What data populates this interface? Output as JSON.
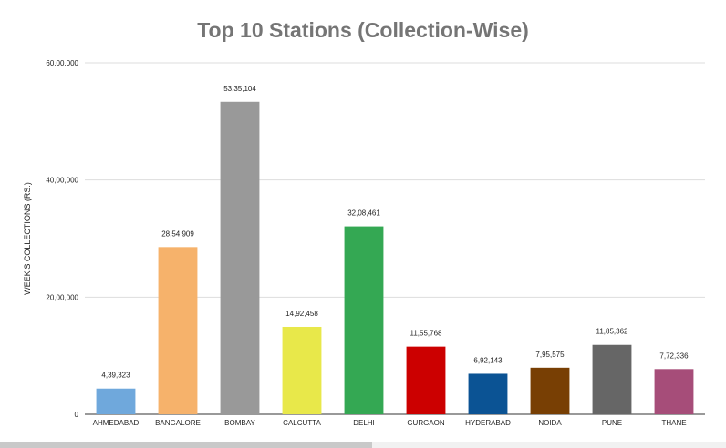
{
  "chart_data": {
    "type": "bar",
    "title": "Top 10 Stations (Collection-Wise)",
    "xlabel": "",
    "ylabel": "WEEK'S COLLECTIONS (RS.)",
    "ylim": [
      0,
      6000000
    ],
    "yticks": [
      {
        "value": 0,
        "label": "0"
      },
      {
        "value": 2000000,
        "label": "20,00,000"
      },
      {
        "value": 4000000,
        "label": "40,00,000"
      },
      {
        "value": 6000000,
        "label": "60,00,000"
      }
    ],
    "grid": true,
    "legend": "none",
    "categories": [
      "AHMEDABAD",
      "BANGALORE",
      "BOMBAY",
      "CALCUTTA",
      "DELHI",
      "GURGAON",
      "HYDERABAD",
      "NOIDA",
      "PUNE",
      "THANE"
    ],
    "values": [
      439323,
      2854909,
      5335104,
      1492458,
      3208461,
      1155768,
      692143,
      795575,
      1185362,
      772336
    ],
    "value_labels": [
      "4,39,323",
      "28,54,909",
      "53,35,104",
      "14,92,458",
      "32,08,461",
      "11,55,768",
      "6,92,143",
      "7,95,575",
      "11,85,362",
      "7,72,336"
    ],
    "colors": [
      "#6fa8dc",
      "#f6b26b",
      "#999999",
      "#e8e84a",
      "#34a853",
      "#cc0000",
      "#0b5394",
      "#783f04",
      "#666666",
      "#a64d79"
    ]
  }
}
